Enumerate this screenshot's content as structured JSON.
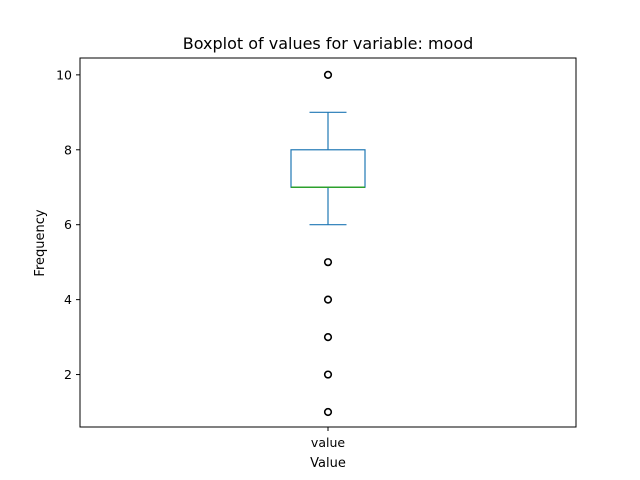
{
  "chart_data": {
    "type": "box",
    "title": "Boxplot of values for variable: mood",
    "xlabel": "Value",
    "ylabel": "Frequency",
    "categories": [
      "value"
    ],
    "ylim": [
      0.6,
      10.45
    ],
    "yticks": [
      2,
      4,
      6,
      8,
      10
    ],
    "box": {
      "whisker_low": 6,
      "q1": 7,
      "median": 7,
      "q3": 8,
      "whisker_high": 9
    },
    "outliers": [
      10,
      5,
      4,
      3,
      2,
      1
    ],
    "colors": {
      "box": "#1f77b4",
      "median": "#2ca02c",
      "outlier": "#000000"
    }
  }
}
